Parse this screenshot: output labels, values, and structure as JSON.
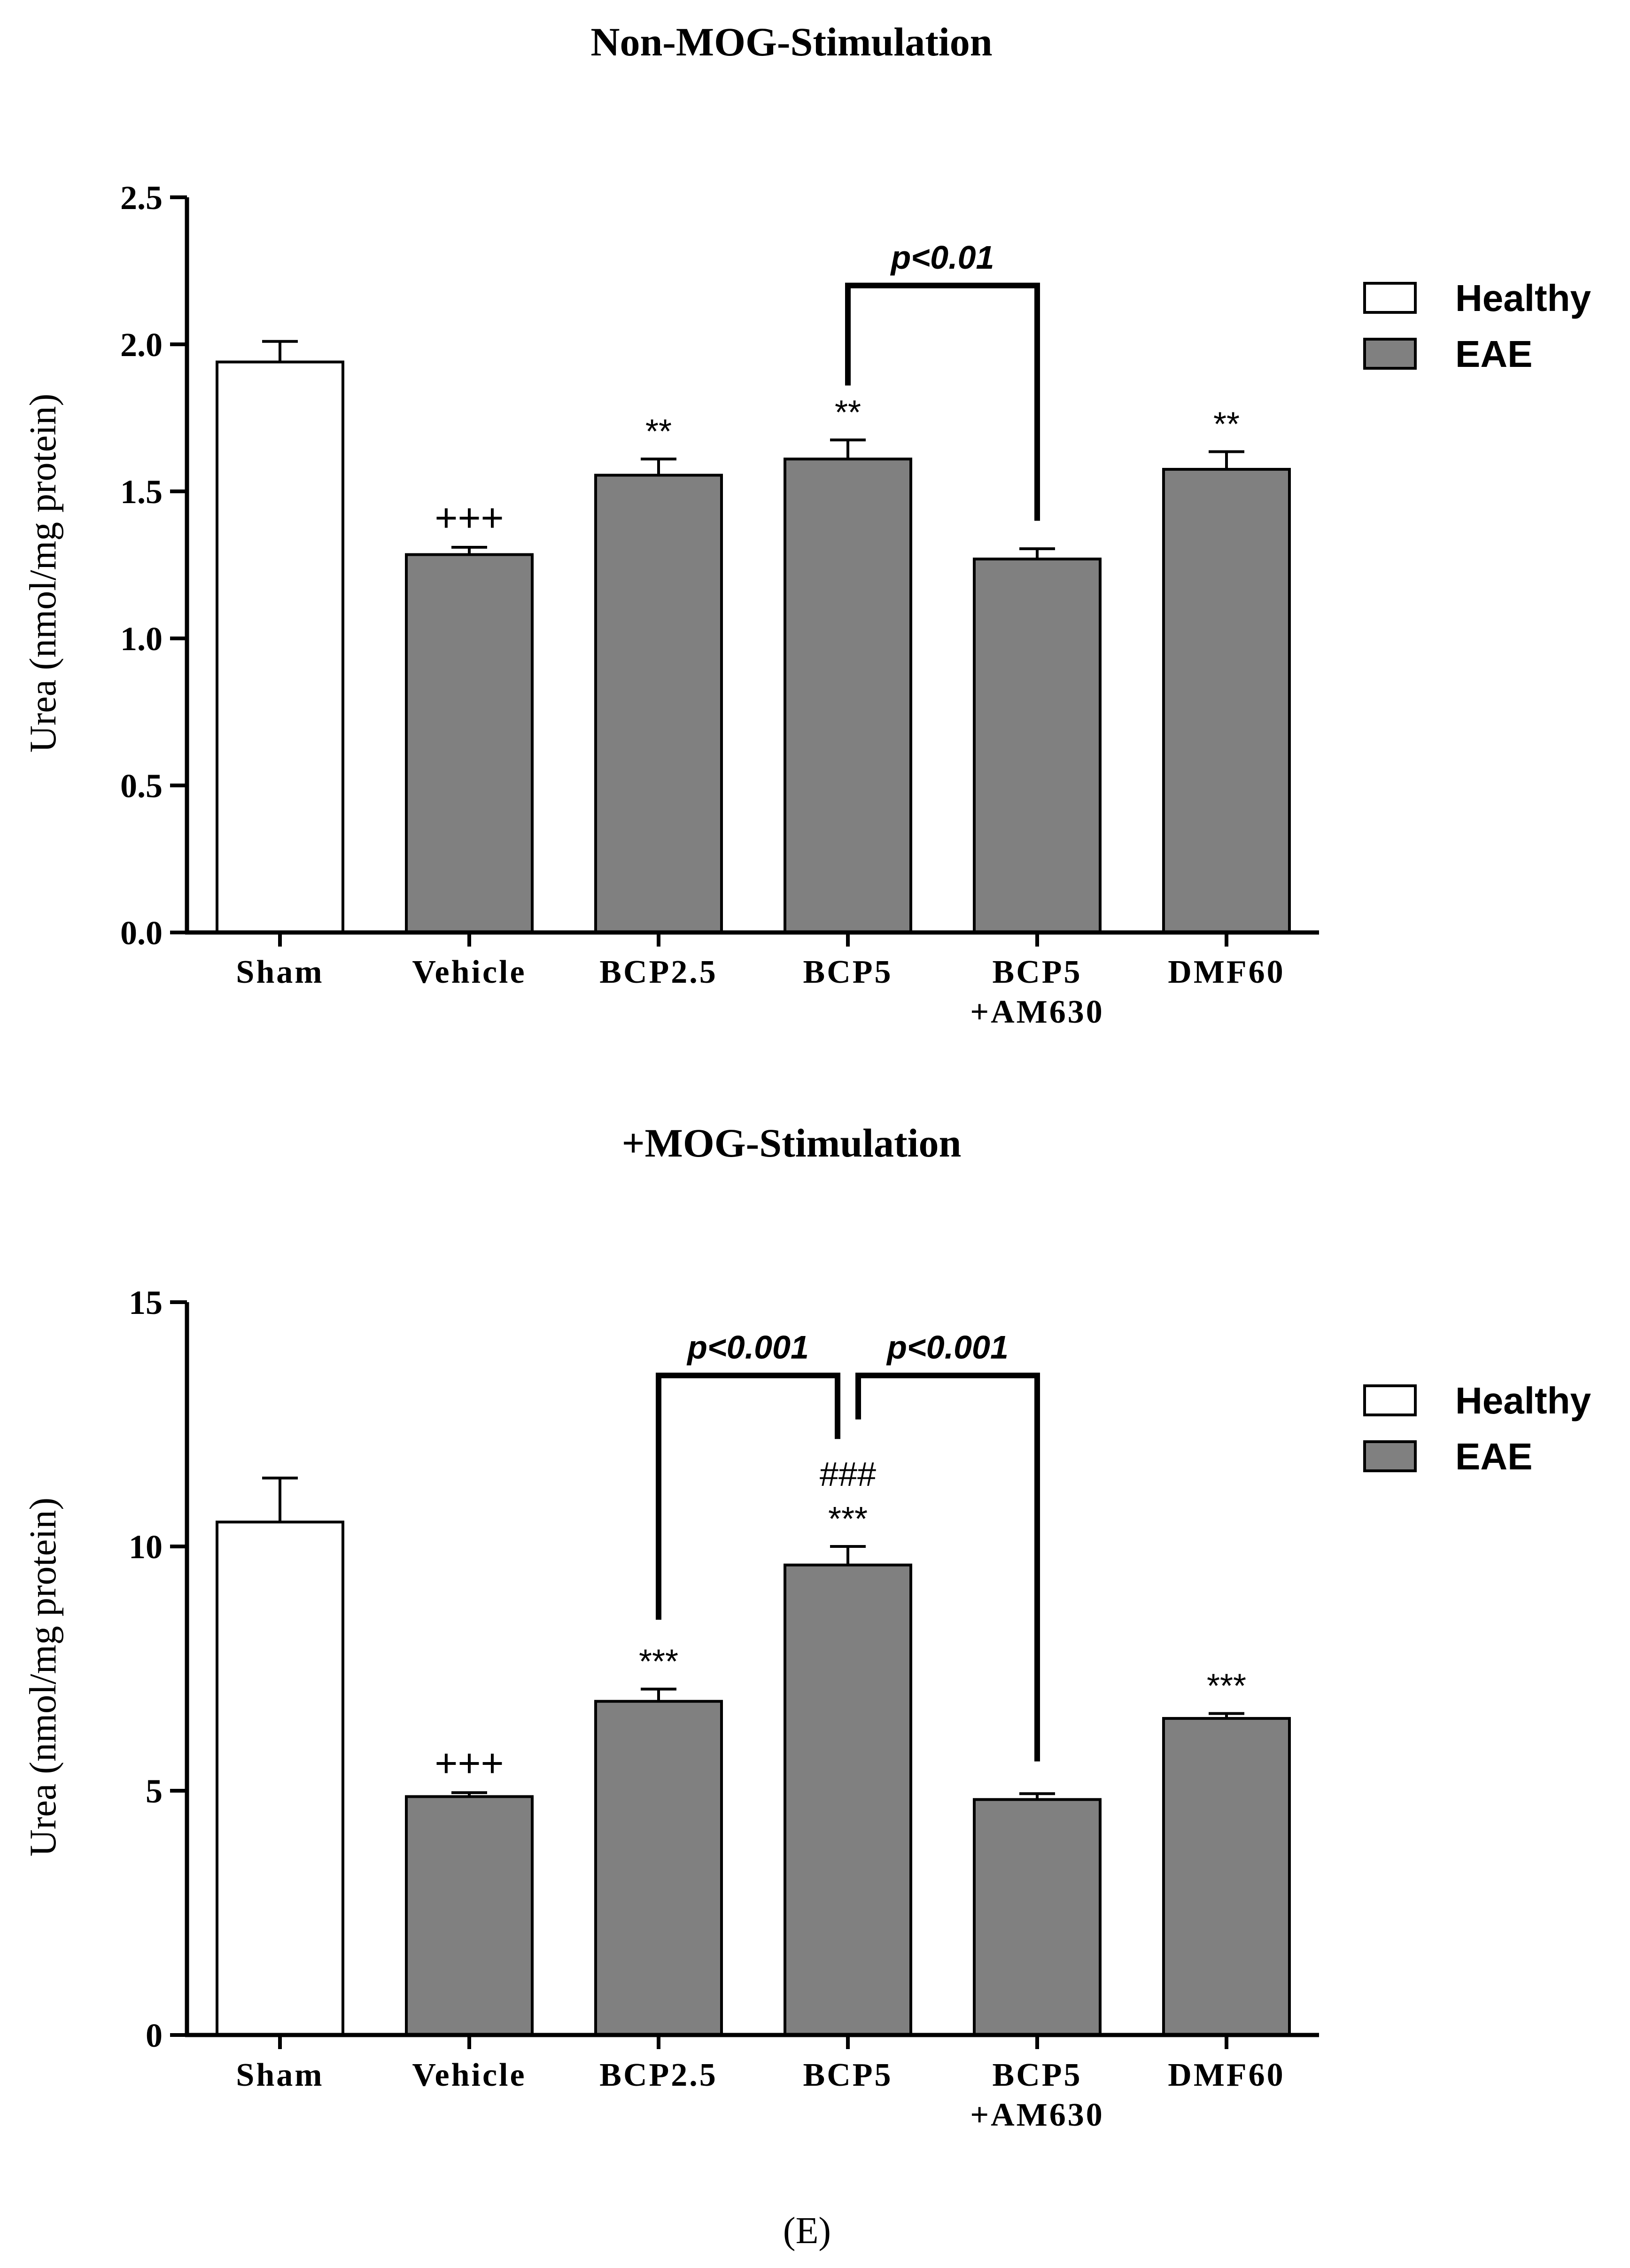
{
  "figure_label": "(E)",
  "colors": {
    "healthy_fill": "#ffffff",
    "eae_fill": "#808080",
    "stroke": "#000000"
  },
  "chart_data": [
    {
      "type": "bar",
      "title": "Non-MOG-Stimulation",
      "ylabel": "Urea (nmol/mg protein)",
      "xlabel": "",
      "ylim": [
        0,
        2.5
      ],
      "yticks": [
        "0.0",
        "0.5",
        "1.0",
        "1.5",
        "2.0",
        "2.5"
      ],
      "categories": [
        {
          "label": "Sham",
          "label2": ""
        },
        {
          "label": "Vehicle",
          "label2": ""
        },
        {
          "label": "BCP2.5",
          "label2": ""
        },
        {
          "label": "BCP5",
          "label2": ""
        },
        {
          "label": "BCP5",
          "label2": "+AM630"
        },
        {
          "label": "DMF60",
          "label2": ""
        }
      ],
      "values": [
        1.94,
        1.285,
        1.555,
        1.61,
        1.27,
        1.575
      ],
      "errors": [
        0.07,
        0.025,
        0.055,
        0.065,
        0.035,
        0.06
      ],
      "groups": [
        "Healthy",
        "EAE",
        "EAE",
        "EAE",
        "EAE",
        "EAE"
      ],
      "annotations": [
        {
          "bar": 1,
          "lines": [
            "+++"
          ]
        },
        {
          "bar": 2,
          "lines": [
            "**"
          ]
        },
        {
          "bar": 3,
          "lines": [
            "**"
          ]
        },
        {
          "bar": 5,
          "lines": [
            "**"
          ]
        }
      ],
      "brackets": [
        {
          "from": 3,
          "to": 4,
          "from_y": 1.86,
          "to_y": 1.4,
          "top_y": 2.2,
          "label": "p<0.01"
        }
      ],
      "legend": {
        "position": "top-right",
        "entries": [
          "Healthy",
          "EAE"
        ]
      }
    },
    {
      "type": "bar",
      "title": "+MOG-Stimulation",
      "ylabel": "Urea (nmol/mg protein)",
      "xlabel": "",
      "ylim": [
        0,
        15
      ],
      "yticks": [
        "0",
        "5",
        "10",
        "15"
      ],
      "categories": [
        {
          "label": "Sham",
          "label2": ""
        },
        {
          "label": "Vehicle",
          "label2": ""
        },
        {
          "label": "BCP2.5",
          "label2": ""
        },
        {
          "label": "BCP5",
          "label2": ""
        },
        {
          "label": "BCP5",
          "label2": "+AM630"
        },
        {
          "label": "DMF60",
          "label2": ""
        }
      ],
      "values": [
        10.5,
        4.88,
        6.83,
        9.62,
        4.82,
        6.48
      ],
      "errors": [
        0.9,
        0.08,
        0.25,
        0.38,
        0.12,
        0.1
      ],
      "groups": [
        "Healthy",
        "EAE",
        "EAE",
        "EAE",
        "EAE",
        "EAE"
      ],
      "annotations": [
        {
          "bar": 1,
          "lines": [
            "+++"
          ]
        },
        {
          "bar": 2,
          "lines": [
            "***"
          ]
        },
        {
          "bar": 3,
          "lines": [
            "###",
            "***"
          ]
        },
        {
          "bar": 5,
          "lines": [
            "***"
          ]
        }
      ],
      "brackets": [
        {
          "from": 2,
          "to": 3,
          "from_y": 8.5,
          "to_y": 12.2,
          "top_y": 13.5,
          "label": "p<0.001"
        },
        {
          "from": 3,
          "to": 4,
          "from_y": 12.6,
          "to_y": 5.6,
          "top_y": 13.5,
          "label": "p<0.001"
        }
      ],
      "legend": {
        "position": "top-right",
        "entries": [
          "Healthy",
          "EAE"
        ]
      }
    }
  ]
}
